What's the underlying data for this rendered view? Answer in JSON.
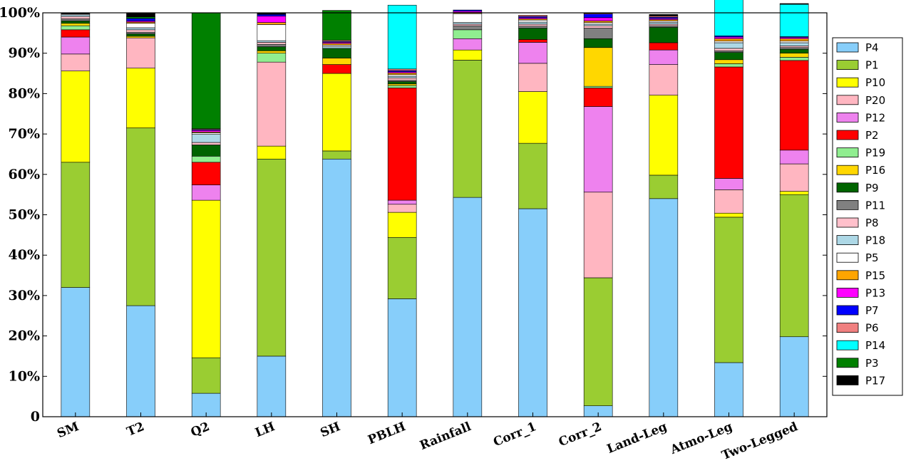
{
  "chart_data": {
    "type": "bar",
    "stacked": true,
    "normalized_percent": true,
    "ylim": [
      0,
      100
    ],
    "yticks": [
      0,
      10,
      20,
      30,
      40,
      50,
      60,
      70,
      80,
      90,
      100
    ],
    "ytick_labels": [
      "0",
      "10%",
      "20%",
      "30%",
      "40%",
      "50%",
      "60%",
      "70%",
      "80%",
      "90%",
      "100%"
    ],
    "categories": [
      "SM",
      "T2",
      "Q2",
      "LH",
      "SH",
      "PBLH",
      "Rainfall",
      "Corr_1",
      "Corr_2",
      "Land-Leg",
      "Atmo-Leg",
      "Two-Legged"
    ],
    "legend_position": "right",
    "series": [
      {
        "name": "P4",
        "color": "#87CEFA",
        "values": [
          32.0,
          27.5,
          5.8,
          15.0,
          63.8,
          29.2,
          54.3,
          51.5,
          2.7,
          54.0,
          13.4,
          19.8
        ]
      },
      {
        "name": "P1",
        "color": "#9ACD32",
        "values": [
          31.0,
          44.0,
          8.8,
          48.8,
          2.0,
          15.2,
          34.0,
          16.2,
          31.7,
          5.8,
          36.0,
          35.2
        ]
      },
      {
        "name": "P10",
        "color": "#FFFF00",
        "values": [
          22.6,
          14.8,
          39.0,
          3.2,
          19.2,
          6.2,
          2.5,
          12.8,
          0.0,
          19.8,
          1.0,
          0.8
        ]
      },
      {
        "name": "P20",
        "color": "#FFB6C1",
        "values": [
          4.2,
          7.5,
          0.0,
          20.8,
          0.0,
          2.0,
          0.0,
          7.0,
          21.2,
          7.6,
          5.8,
          6.8
        ]
      },
      {
        "name": "P12",
        "color": "#EE82EE",
        "values": [
          4.2,
          0.0,
          3.8,
          0.0,
          0.0,
          1.0,
          2.8,
          5.2,
          21.2,
          3.6,
          2.8,
          3.4
        ]
      },
      {
        "name": "P2",
        "color": "#FF0000",
        "values": [
          1.8,
          0.0,
          5.6,
          0.0,
          2.2,
          27.8,
          0.0,
          0.7,
          4.6,
          1.8,
          27.6,
          22.2
        ]
      },
      {
        "name": "P19",
        "color": "#90EE90",
        "values": [
          1.0,
          0.0,
          1.5,
          2.2,
          0.0,
          0.6,
          2.2,
          0.0,
          0.4,
          0.0,
          0.8,
          0.8
        ]
      },
      {
        "name": "P16",
        "color": "#FFD700",
        "values": [
          0.6,
          0.4,
          0.0,
          0.6,
          1.6,
          0.4,
          0.0,
          0.0,
          9.6,
          0.0,
          1.0,
          1.0
        ]
      },
      {
        "name": "P9",
        "color": "#006400",
        "values": [
          0.6,
          0.6,
          2.8,
          1.0,
          2.4,
          0.6,
          0.0,
          2.8,
          2.2,
          3.8,
          1.8,
          1.0
        ]
      },
      {
        "name": "P11",
        "color": "#808080",
        "values": [
          0.5,
          0.4,
          0.0,
          0.6,
          0.0,
          0.3,
          1.0,
          0.5,
          2.6,
          0.4,
          0.4,
          0.4
        ]
      },
      {
        "name": "P8",
        "color": "#FFC0CB",
        "values": [
          0.6,
          0.6,
          0.6,
          0.5,
          0.0,
          0.6,
          0.4,
          0.5,
          0.6,
          0.4,
          0.6,
          0.4
        ]
      },
      {
        "name": "P18",
        "color": "#ADD8E6",
        "values": [
          0.4,
          0.5,
          2.0,
          0.4,
          0.4,
          0.4,
          0.4,
          0.5,
          0.4,
          0.4,
          1.4,
          0.8
        ]
      },
      {
        "name": "P5",
        "color": "#FFFFFF",
        "values": [
          0.2,
          1.1,
          0.4,
          4.0,
          0.4,
          0.4,
          2.2,
          0.5,
          0.4,
          0.4,
          0.4,
          0.4
        ]
      },
      {
        "name": "P15",
        "color": "#FFA500",
        "values": [
          0.1,
          0.3,
          0.2,
          0.5,
          0.4,
          0.4,
          0.3,
          0.3,
          0.4,
          0.3,
          0.6,
          0.6
        ]
      },
      {
        "name": "P13",
        "color": "#FF00FF",
        "values": [
          0.1,
          0.3,
          0.4,
          1.6,
          0.3,
          0.3,
          0.3,
          0.3,
          0.8,
          0.3,
          0.4,
          0.3
        ]
      },
      {
        "name": "P7",
        "color": "#0000FF",
        "values": [
          0.1,
          0.6,
          0.2,
          0.4,
          0.2,
          0.3,
          0.3,
          0.3,
          0.9,
          0.3,
          0.3,
          0.2
        ]
      },
      {
        "name": "P6",
        "color": "#F08080",
        "values": [
          0.0,
          0.0,
          0.2,
          0.0,
          0.3,
          0.4,
          0.0,
          0.3,
          0.2,
          0.3,
          0.0,
          0.0
        ]
      },
      {
        "name": "P14",
        "color": "#00FFFF",
        "values": [
          0.0,
          0.0,
          0.0,
          0.0,
          0.0,
          15.8,
          0.0,
          0.0,
          0.0,
          0.0,
          9.2,
          8.0
        ]
      },
      {
        "name": "P3",
        "color": "#008000",
        "values": [
          0.0,
          0.4,
          28.7,
          0.0,
          7.4,
          0.0,
          0.0,
          0.0,
          0.0,
          0.0,
          0.0,
          0.0
        ]
      },
      {
        "name": "P17",
        "color": "#000000",
        "values": [
          0.0,
          1.0,
          0.0,
          0.4,
          0.0,
          0.0,
          0.0,
          0.0,
          0.1,
          0.4,
          0.3,
          0.2
        ]
      }
    ],
    "legend_order": [
      "P4",
      "P1",
      "P10",
      "P20",
      "P12",
      "P2",
      "P19",
      "P16",
      "P9",
      "P11",
      "P8",
      "P18",
      "P5",
      "P15",
      "P13",
      "P7",
      "P6",
      "P14",
      "P3",
      "P17"
    ]
  }
}
